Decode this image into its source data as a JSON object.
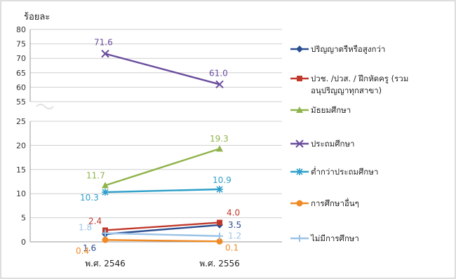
{
  "chart_data": {
    "type": "line",
    "ylabel": "ร้อยละ",
    "categories": [
      "พ.ศ. 2546",
      "พ.ศ. 2556"
    ],
    "axis_break": true,
    "upper_ylim": [
      55,
      80
    ],
    "upper_yticks": [
      "80",
      "75",
      "70",
      "65",
      "60",
      "55"
    ],
    "lower_ylim": [
      0,
      25
    ],
    "lower_yticks": [
      "25",
      "20",
      "15",
      "10",
      "5",
      "0"
    ],
    "grid": true,
    "legend_position": "right",
    "series": [
      {
        "name": "ปริญญาตรีหรือสูงกว่า",
        "values": [
          1.6,
          3.5
        ],
        "labels": [
          "1.6",
          "3.5"
        ],
        "color": "#2a4d8f",
        "marker": "diamond",
        "panel": "lower"
      },
      {
        "name": "ปวช. /ปวส. / ฝึกหัดครู (รวม อนุปริญญาทุกสาขา)",
        "name_lines": [
          "ปวช. /ปวส. / ฝึกหัดครู (รวม",
          "อนุปริญญาทุกสาขา)"
        ],
        "values": [
          2.4,
          4.0
        ],
        "labels": [
          "2.4",
          "4.0"
        ],
        "color": "#c0392b",
        "marker": "square",
        "panel": "lower"
      },
      {
        "name": "มัธยมศึกษา",
        "values": [
          11.7,
          19.3
        ],
        "labels": [
          "11.7",
          "19.3"
        ],
        "color": "#8fb34a",
        "marker": "triangle",
        "panel": "lower"
      },
      {
        "name": "ประถมศึกษา",
        "values": [
          71.6,
          61.0
        ],
        "labels": [
          "71.6",
          "61.0"
        ],
        "color": "#6a4c9c",
        "marker": "x",
        "panel": "upper"
      },
      {
        "name": "ต่ำกว่าประถมศึกษา",
        "values": [
          10.3,
          10.9
        ],
        "labels": [
          "10.3",
          "10.9"
        ],
        "color": "#2e9fc9",
        "marker": "star",
        "panel": "lower"
      },
      {
        "name": "การศึกษาอื่นๆ",
        "values": [
          0.4,
          0.1
        ],
        "labels": [
          "0.4",
          "0.1"
        ],
        "color": "#f08a24",
        "marker": "circle",
        "panel": "lower"
      },
      {
        "name": "ไม่มีการศึกษา",
        "values": [
          1.8,
          1.2
        ],
        "labels": [
          "1.8",
          "1.2"
        ],
        "color": "#9cc3e6",
        "marker": "plus",
        "panel": "lower"
      }
    ]
  }
}
